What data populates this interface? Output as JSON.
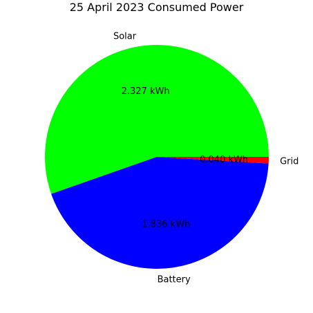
{
  "chart_data": {
    "type": "pie",
    "title": "25 April 2023 Consumed Power",
    "slices": [
      {
        "label": "Solar",
        "value": 2.327,
        "value_label": "2.327 kWh",
        "color": "#00ff00"
      },
      {
        "label": "Battery",
        "value": 1.836,
        "value_label": "1.836 kWh",
        "color": "#0000ff"
      },
      {
        "label": "Grid",
        "value": 0.04,
        "value_label": "0.040 kWh",
        "color": "#ff0000"
      }
    ],
    "start_angle_deg": 0,
    "direction": "counterclockwise"
  }
}
